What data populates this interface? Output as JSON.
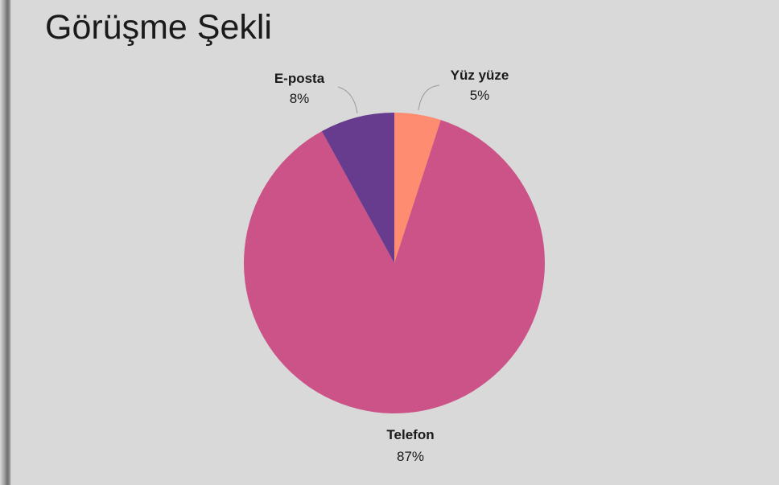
{
  "title": "Görüşme Şekli",
  "chart_data": {
    "type": "pie",
    "title": "Görüşme Şekli",
    "slices": [
      {
        "label": "Yüz yüze",
        "value": 5,
        "display": "5%",
        "color": "#fe8c71"
      },
      {
        "label": "Telefon",
        "value": 87,
        "display": "87%",
        "color": "#cc5387"
      },
      {
        "label": "E-posta",
        "value": 8,
        "display": "8%",
        "color": "#673b8e"
      }
    ],
    "start": "top",
    "direction": "clockwise",
    "legend": "none"
  },
  "colors": {
    "background": "#d9d9d9",
    "label_text": "#1a1a1a",
    "leader_line": "#9a9a9a"
  }
}
